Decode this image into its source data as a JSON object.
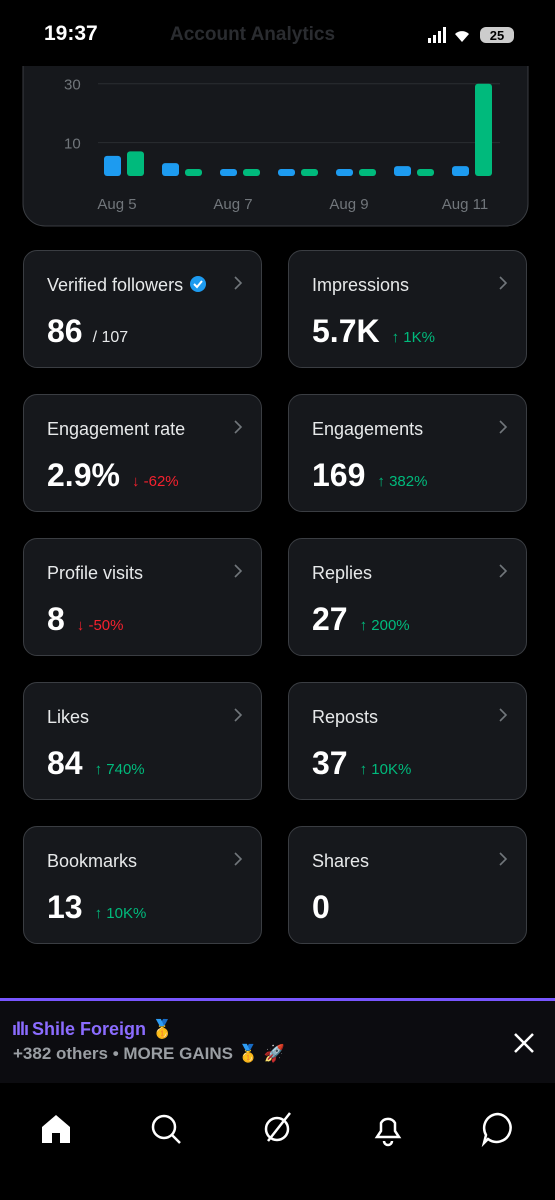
{
  "status": {
    "time": "19:37",
    "battery": "25"
  },
  "header": {
    "title": "Account Analytics"
  },
  "chart_data": {
    "type": "bar",
    "categories": [
      "Aug 5",
      null,
      "Aug 7",
      null,
      "Aug 9",
      null,
      "Aug 11"
    ],
    "series": [
      {
        "color": "#1d9bf0",
        "values": [
          5.5,
          3,
          1,
          0,
          1,
          2,
          2
        ]
      },
      {
        "color": "#00ba7c",
        "values": [
          7,
          0,
          1,
          1,
          0,
          0,
          30
        ]
      }
    ],
    "ylim": [
      0,
      35
    ],
    "yticks": [
      10,
      30
    ]
  },
  "cards": [
    {
      "label": "Verified followers",
      "value": "86",
      "total": "/ 107",
      "verified": true
    },
    {
      "label": "Impressions",
      "value": "5.7K",
      "change": "1K%",
      "direction": "up"
    },
    {
      "label": "Engagement rate",
      "value": "2.9%",
      "change": "-62%",
      "direction": "down"
    },
    {
      "label": "Engagements",
      "value": "169",
      "change": "382%",
      "direction": "up"
    },
    {
      "label": "Profile visits",
      "value": "8",
      "change": "-50%",
      "direction": "down"
    },
    {
      "label": "Replies",
      "value": "27",
      "change": "200%",
      "direction": "up"
    },
    {
      "label": "Likes",
      "value": "84",
      "change": "740%",
      "direction": "up"
    },
    {
      "label": "Reposts",
      "value": "37",
      "change": "10K%",
      "direction": "up"
    },
    {
      "label": "Bookmarks",
      "value": "13",
      "change": "10K%",
      "direction": "up"
    },
    {
      "label": "Shares",
      "value": "0"
    }
  ],
  "promo": {
    "name": "Shile Foreign 🥇",
    "text": "+382 others • MORE GAINS 🥇 🚀"
  }
}
